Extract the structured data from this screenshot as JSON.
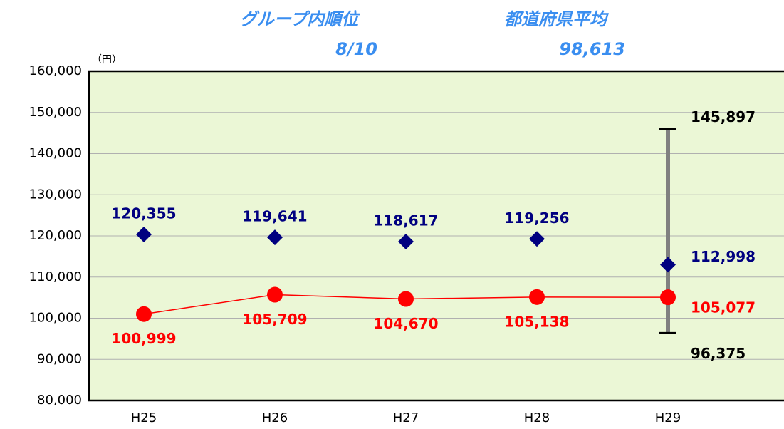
{
  "header": {
    "rank_title": "グループ内順位",
    "rank_value": "8/10",
    "avg_title": "都道府県平均",
    "avg_value": "98,613"
  },
  "chart_data": {
    "type": "scatter-line",
    "y_unit": "（円）",
    "categories": [
      "H25",
      "H26",
      "H27",
      "H28",
      "H29"
    ],
    "series": [
      {
        "color": "#000080",
        "marker": "diamond",
        "line": false,
        "values": [
          120355,
          119641,
          118617,
          119256,
          112998
        ],
        "value_labels": [
          "120,355",
          "119,641",
          "118,617",
          "119,256",
          "112,998"
        ]
      },
      {
        "color": "#ff0000",
        "marker": "circle",
        "line": true,
        "values": [
          100999,
          105709,
          104670,
          105138,
          105077
        ],
        "value_labels": [
          "100,999",
          "105,709",
          "104,670",
          "105,138",
          "105,077"
        ]
      }
    ],
    "range": {
      "category": 4,
      "color": "#808080",
      "values": [
        145897,
        96375
      ],
      "value_labels": [
        "145,897",
        "96,375"
      ]
    },
    "ylim": [
      80000,
      160000
    ],
    "yticks": [
      {
        "value": 80000,
        "label": "80,000"
      },
      {
        "value": 90000,
        "label": "90,000"
      },
      {
        "value": 100000,
        "label": "100,000"
      },
      {
        "value": 110000,
        "label": "110,000"
      },
      {
        "value": 120000,
        "label": "120,000"
      },
      {
        "value": 130000,
        "label": "130,000"
      },
      {
        "value": 140000,
        "label": "140,000"
      },
      {
        "value": 150000,
        "label": "150,000"
      },
      {
        "value": 160000,
        "label": "160,000"
      }
    ],
    "grid": true,
    "plot_color": "#ebf7d6"
  }
}
